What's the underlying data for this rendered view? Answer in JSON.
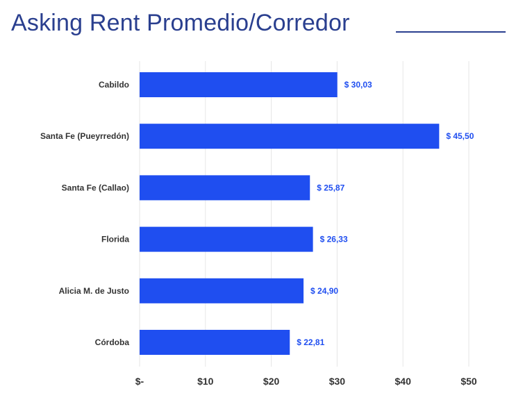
{
  "title": "Asking Rent Promedio/Corredor",
  "colors": {
    "bar": "#1f4ef0",
    "value_label": "#1f4ef0",
    "title": "#2a3f8f",
    "grid": "#e6e6e6"
  },
  "chart_data": {
    "type": "bar",
    "orientation": "horizontal",
    "categories": [
      "Cabildo",
      "Santa Fe (Pueyrredón)",
      "Santa Fe (Callao)",
      "Florida",
      "Alicia M. de Justo",
      "Córdoba"
    ],
    "values": [
      30.03,
      45.5,
      25.87,
      26.33,
      24.9,
      22.81
    ],
    "value_labels": [
      "$ 30,03",
      "$ 45,50",
      "$ 25,87",
      "$ 26,33",
      "$ 24,90",
      "$ 22,81"
    ],
    "xlim": [
      0,
      50
    ],
    "x_ticks": [
      0,
      10,
      20,
      30,
      40,
      50
    ],
    "x_tick_labels": [
      "$-",
      "$10",
      "$20",
      "$30",
      "$40",
      "$50"
    ],
    "grid": "vertical",
    "legend": "none"
  }
}
